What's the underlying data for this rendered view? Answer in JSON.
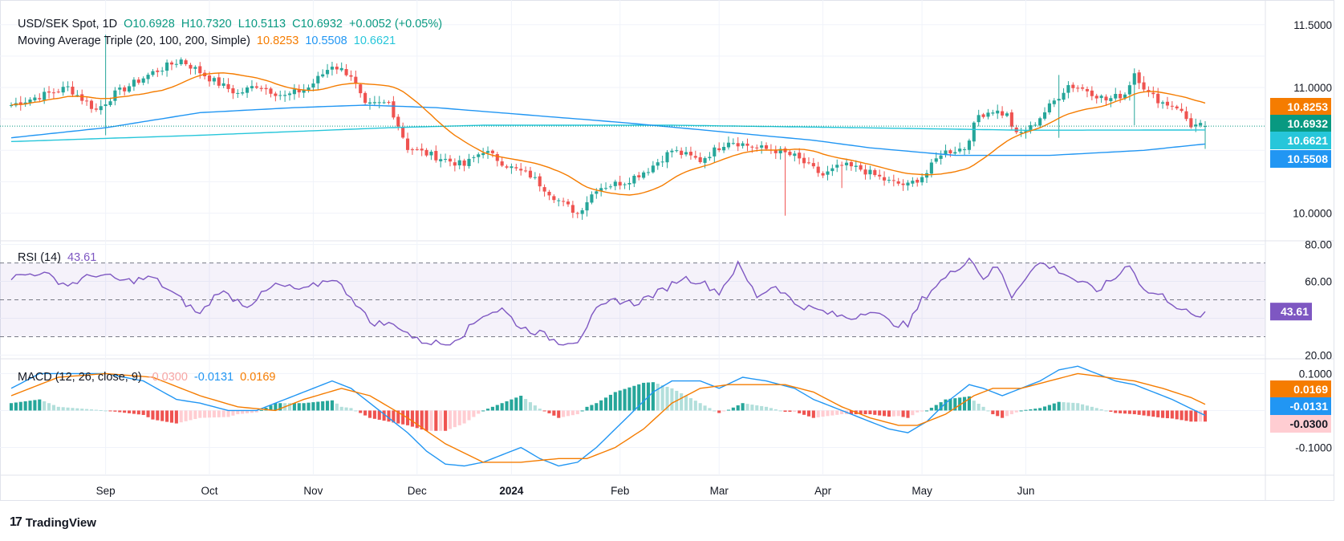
{
  "header": {
    "symbol": "USD/SEK Spot, 1D",
    "open": "O10.6928",
    "high": "H10.7320",
    "low": "L10.5113",
    "close": "C10.6932",
    "change": "+0.0052 (+0.05%)",
    "ma_label": "Moving Average Triple (20, 100, 200, Simple)",
    "ma20": "10.8253",
    "ma100": "10.5508",
    "ma200": "10.6621",
    "rsi_label": "RSI (14)",
    "rsi_value": "43.61",
    "macd_label": "MACD (12, 26, close, 9)",
    "macd_hist": "-0.0300",
    "macd_line": "-0.0131",
    "macd_signal": "0.0169"
  },
  "branding": {
    "name": "TradingView"
  },
  "colors": {
    "up": "#26a69a",
    "down": "#ef5350",
    "ma20": "#f57c00",
    "ma100": "#2196f3",
    "ma200": "#26c6da",
    "rsi": "#7e57c2",
    "macd": "#2196f3",
    "signal": "#f57c00",
    "price_badge": "#089981"
  },
  "chart_data": [
    {
      "type": "candlestick",
      "title": "USD/SEK Spot, 1D",
      "x_labels": [
        "Sep",
        "Oct",
        "Nov",
        "Dec",
        "2024",
        "Feb",
        "Mar",
        "Apr",
        "May",
        "Jun"
      ],
      "y_ticks": [
        "11.5000",
        "11.0000",
        "10.0000"
      ],
      "ylim": [
        9.78,
        11.62
      ],
      "last_price": "10.6932",
      "badges": [
        "10.8253",
        "10.6932",
        "10.6621",
        "10.5508"
      ],
      "close_anchors": [
        [
          0,
          10.86
        ],
        [
          5,
          10.92
        ],
        [
          12,
          11.0
        ],
        [
          18,
          10.82
        ],
        [
          22,
          10.95
        ],
        [
          30,
          11.12
        ],
        [
          36,
          11.22
        ],
        [
          43,
          11.05
        ],
        [
          48,
          10.95
        ],
        [
          52,
          11.02
        ],
        [
          58,
          10.93
        ],
        [
          63,
          11.0
        ],
        [
          68,
          11.18
        ],
        [
          72,
          11.1
        ],
        [
          75,
          10.85
        ],
        [
          80,
          10.88
        ],
        [
          84,
          10.52
        ],
        [
          90,
          10.45
        ],
        [
          96,
          10.38
        ],
        [
          100,
          10.5
        ],
        [
          106,
          10.36
        ],
        [
          110,
          10.3
        ],
        [
          116,
          10.1
        ],
        [
          120,
          10.0
        ],
        [
          124,
          10.2
        ],
        [
          130,
          10.25
        ],
        [
          135,
          10.35
        ],
        [
          140,
          10.5
        ],
        [
          146,
          10.42
        ],
        [
          152,
          10.58
        ],
        [
          158,
          10.52
        ],
        [
          162,
          10.5
        ],
        [
          166,
          10.45
        ],
        [
          172,
          10.3
        ],
        [
          176,
          10.38
        ],
        [
          180,
          10.35
        ],
        [
          186,
          10.25
        ],
        [
          190,
          10.22
        ],
        [
          194,
          10.32
        ],
        [
          197,
          10.48
        ],
        [
          202,
          10.52
        ],
        [
          205,
          10.78
        ],
        [
          208,
          10.82
        ],
        [
          211,
          10.78
        ],
        [
          213,
          10.62
        ],
        [
          216,
          10.68
        ],
        [
          220,
          10.85
        ],
        [
          224,
          11.02
        ],
        [
          228,
          10.98
        ],
        [
          232,
          10.9
        ],
        [
          236,
          10.95
        ],
        [
          238,
          11.12
        ],
        [
          241,
          10.95
        ],
        [
          244,
          10.88
        ],
        [
          247,
          10.85
        ],
        [
          250,
          10.7
        ],
        [
          253,
          10.693
        ]
      ]
    },
    {
      "type": "line",
      "title": "RSI (14)",
      "y_ticks": [
        "80.00",
        "60.00",
        "20.00"
      ],
      "ylim": [
        18,
        82
      ],
      "bands": [
        30,
        50,
        70
      ],
      "last_value": "43.61",
      "anchors": [
        [
          0,
          62
        ],
        [
          6,
          65
        ],
        [
          12,
          58
        ],
        [
          18,
          64
        ],
        [
          24,
          60
        ],
        [
          30,
          62
        ],
        [
          36,
          50
        ],
        [
          40,
          42
        ],
        [
          44,
          55
        ],
        [
          50,
          47
        ],
        [
          56,
          58
        ],
        [
          62,
          55
        ],
        [
          68,
          62
        ],
        [
          72,
          52
        ],
        [
          76,
          38
        ],
        [
          82,
          36
        ],
        [
          86,
          28
        ],
        [
          92,
          26
        ],
        [
          96,
          32
        ],
        [
          100,
          42
        ],
        [
          104,
          45
        ],
        [
          108,
          35
        ],
        [
          112,
          32
        ],
        [
          116,
          27
        ],
        [
          120,
          28
        ],
        [
          124,
          44
        ],
        [
          128,
          50
        ],
        [
          132,
          48
        ],
        [
          138,
          55
        ],
        [
          142,
          62
        ],
        [
          146,
          60
        ],
        [
          150,
          54
        ],
        [
          154,
          69
        ],
        [
          158,
          52
        ],
        [
          162,
          58
        ],
        [
          166,
          48
        ],
        [
          170,
          45
        ],
        [
          174,
          42
        ],
        [
          178,
          40
        ],
        [
          182,
          45
        ],
        [
          186,
          38
        ],
        [
          190,
          36
        ],
        [
          193,
          50
        ],
        [
          196,
          58
        ],
        [
          200,
          66
        ],
        [
          203,
          73
        ],
        [
          206,
          62
        ],
        [
          209,
          68
        ],
        [
          212,
          52
        ],
        [
          215,
          63
        ],
        [
          218,
          70
        ],
        [
          222,
          66
        ],
        [
          226,
          60
        ],
        [
          230,
          55
        ],
        [
          234,
          62
        ],
        [
          237,
          70
        ],
        [
          240,
          55
        ],
        [
          244,
          52
        ],
        [
          248,
          45
        ],
        [
          251,
          40
        ],
        [
          253,
          43.61
        ]
      ]
    },
    {
      "type": "line+bar",
      "title": "MACD (12, 26, close, 9)",
      "y_ticks": [
        "0.1000",
        "-0.1000"
      ],
      "ylim": [
        -0.175,
        0.14
      ],
      "last_values": {
        "macd": "-0.0131",
        "signal": "0.0169",
        "histogram": "-0.0300"
      },
      "macd_anchors": [
        [
          0,
          0.06
        ],
        [
          6,
          0.1
        ],
        [
          12,
          0.1
        ],
        [
          20,
          0.1
        ],
        [
          28,
          0.08
        ],
        [
          35,
          0.03
        ],
        [
          40,
          0.02
        ],
        [
          46,
          0.0
        ],
        [
          52,
          0.0
        ],
        [
          58,
          0.03
        ],
        [
          64,
          0.06
        ],
        [
          68,
          0.08
        ],
        [
          72,
          0.06
        ],
        [
          78,
          0.0
        ],
        [
          84,
          -0.06
        ],
        [
          88,
          -0.11
        ],
        [
          92,
          -0.145
        ],
        [
          96,
          -0.15
        ],
        [
          100,
          -0.14
        ],
        [
          104,
          -0.12
        ],
        [
          108,
          -0.1
        ],
        [
          112,
          -0.13
        ],
        [
          116,
          -0.15
        ],
        [
          120,
          -0.14
        ],
        [
          124,
          -0.1
        ],
        [
          128,
          -0.05
        ],
        [
          132,
          0.0
        ],
        [
          136,
          0.05
        ],
        [
          140,
          0.08
        ],
        [
          146,
          0.08
        ],
        [
          150,
          0.06
        ],
        [
          155,
          0.09
        ],
        [
          160,
          0.08
        ],
        [
          166,
          0.06
        ],
        [
          170,
          0.03
        ],
        [
          176,
          0.0
        ],
        [
          182,
          -0.03
        ],
        [
          186,
          -0.05
        ],
        [
          190,
          -0.06
        ],
        [
          194,
          -0.03
        ],
        [
          198,
          0.02
        ],
        [
          203,
          0.07
        ],
        [
          206,
          0.06
        ],
        [
          210,
          0.04
        ],
        [
          214,
          0.06
        ],
        [
          218,
          0.08
        ],
        [
          222,
          0.11
        ],
        [
          226,
          0.12
        ],
        [
          230,
          0.1
        ],
        [
          234,
          0.08
        ],
        [
          238,
          0.07
        ],
        [
          242,
          0.05
        ],
        [
          246,
          0.03
        ],
        [
          250,
          0.005
        ],
        [
          253,
          -0.0131
        ]
      ],
      "signal_anchors": [
        [
          0,
          0.04
        ],
        [
          10,
          0.09
        ],
        [
          20,
          0.1
        ],
        [
          30,
          0.09
        ],
        [
          40,
          0.04
        ],
        [
          48,
          0.01
        ],
        [
          56,
          0.0
        ],
        [
          62,
          0.03
        ],
        [
          70,
          0.06
        ],
        [
          76,
          0.04
        ],
        [
          84,
          -0.02
        ],
        [
          92,
          -0.09
        ],
        [
          100,
          -0.14
        ],
        [
          108,
          -0.14
        ],
        [
          116,
          -0.13
        ],
        [
          122,
          -0.13
        ],
        [
          128,
          -0.1
        ],
        [
          134,
          -0.05
        ],
        [
          140,
          0.02
        ],
        [
          146,
          0.06
        ],
        [
          152,
          0.07
        ],
        [
          158,
          0.07
        ],
        [
          164,
          0.07
        ],
        [
          170,
          0.05
        ],
        [
          176,
          0.01
        ],
        [
          182,
          -0.02
        ],
        [
          188,
          -0.04
        ],
        [
          192,
          -0.04
        ],
        [
          198,
          -0.01
        ],
        [
          204,
          0.04
        ],
        [
          208,
          0.06
        ],
        [
          214,
          0.06
        ],
        [
          220,
          0.08
        ],
        [
          226,
          0.1
        ],
        [
          232,
          0.09
        ],
        [
          238,
          0.08
        ],
        [
          244,
          0.06
        ],
        [
          250,
          0.035
        ],
        [
          253,
          0.0169
        ]
      ]
    }
  ]
}
